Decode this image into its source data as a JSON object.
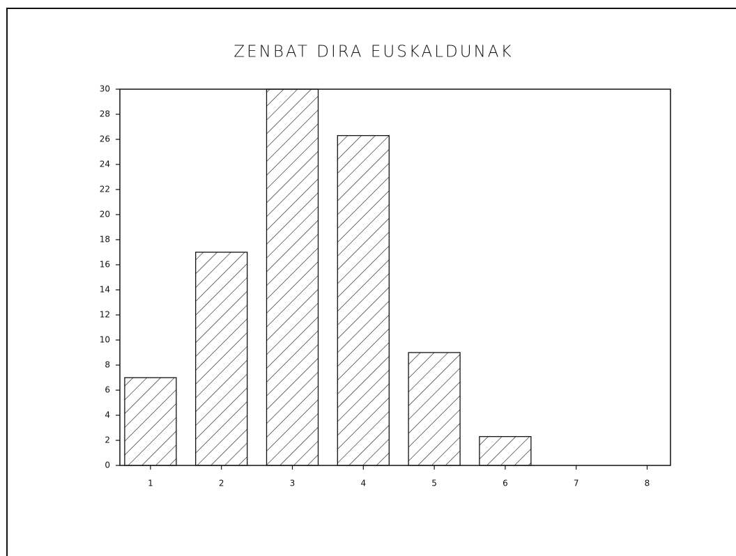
{
  "chart_data": {
    "type": "bar",
    "title": "ZENBAT DIRA EUSKALDUNAK",
    "categories": [
      "1",
      "2",
      "3",
      "4",
      "5",
      "6",
      "7",
      "8"
    ],
    "values": [
      7,
      17,
      30,
      26.3,
      9,
      2.3,
      0,
      0
    ],
    "color": "#111111",
    "ylim": [
      0,
      30
    ],
    "yticks": [
      0,
      2,
      4,
      6,
      8,
      10,
      12,
      14,
      16,
      18,
      20,
      22,
      24,
      26,
      28,
      30
    ],
    "grid": false
  }
}
